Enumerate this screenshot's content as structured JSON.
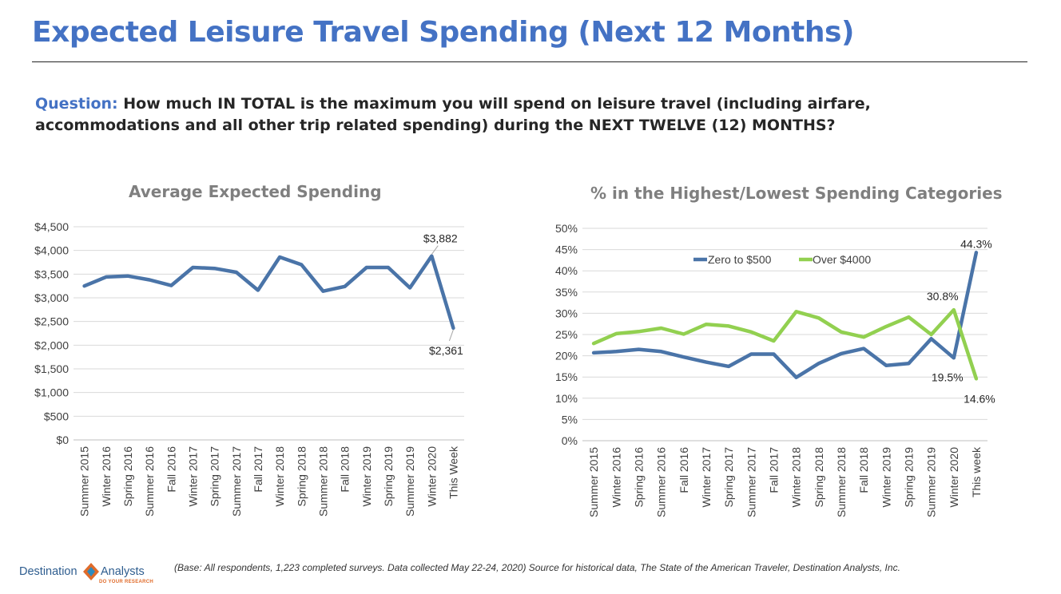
{
  "header": {
    "title": "Expected Leisure Travel Spending (Next 12 Months)",
    "question_label": "Question:",
    "question_text": "How much IN TOTAL is the maximum you will spend on leisure travel (including airfare, accommodations and all other trip related spending) during the NEXT TWELVE (12) MONTHS?"
  },
  "footer": {
    "note": "(Base: All respondents, 1,223 completed surveys. Data collected May 22-24, 2020) Source for historical data, The State of the American Traveler, Destination Analysts, Inc.",
    "logo_left": "Destination",
    "logo_right": "Analysts",
    "logo_tagline": "DO YOUR RESEARCH"
  },
  "colors": {
    "title_blue": "#4472c4",
    "series_blue": "#4a74a8",
    "series_green": "#92d050",
    "gridline": "#d9d9d9",
    "chart_title_gray": "#7f7f7f"
  },
  "chart_data": [
    {
      "type": "line",
      "title": "Average Expected Spending",
      "categories": [
        "Summer 2015",
        "Winter 2016",
        "Spring 2016",
        "Summer 2016",
        "Fall 2016",
        "Winter 2017",
        "Spring 2017",
        "Summer 2017",
        "Fall 2017",
        "Winter 2018",
        "Spring 2018",
        "Summer 2018",
        "Fall 2018",
        "Winter 2019",
        "Spring 2019",
        "Summer 2019",
        "Winter 2020",
        "This Week"
      ],
      "series": [
        {
          "values": [
            3250,
            3440,
            3460,
            3380,
            3260,
            3640,
            3620,
            3540,
            3160,
            3860,
            3700,
            3140,
            3240,
            3640,
            3640,
            3210,
            3882,
            2361
          ]
        }
      ],
      "ylim": [
        0,
        4500
      ],
      "yticks": [
        "$0",
        "$500",
        "$1,000",
        "$1,500",
        "$2,000",
        "$2,500",
        "$3,000",
        "$3,500",
        "$4,000",
        "$4,500"
      ],
      "grid": true,
      "annotations": [
        {
          "category": "Winter 2020",
          "label": "$3,882"
        },
        {
          "category": "This Week",
          "label": "$2,361"
        }
      ]
    },
    {
      "type": "line",
      "title": "% in the Highest/Lowest Spending Categories",
      "categories": [
        "Summer 2015",
        "Winter 2016",
        "Spring 2016",
        "Summer 2016",
        "Fall 2016",
        "Winter 2017",
        "Spring 2017",
        "Summer 2017",
        "Fall 2017",
        "Winter 2018",
        "Spring 2018",
        "Summer 2018",
        "Fall 2018",
        "Winter 2019",
        "Spring 2019",
        "Summer 2019",
        "Winter 2020",
        "This week"
      ],
      "series": [
        {
          "name": "Zero to $500",
          "values": [
            20.7,
            21.0,
            21.5,
            21.0,
            19.7,
            18.5,
            17.5,
            20.4,
            20.4,
            14.9,
            18.2,
            20.5,
            21.7,
            17.7,
            18.2,
            24.0,
            19.5,
            44.3
          ]
        },
        {
          "name": "Over $4000",
          "values": [
            22.9,
            25.2,
            25.7,
            26.5,
            25.1,
            27.4,
            27.0,
            25.6,
            23.5,
            30.4,
            28.9,
            25.6,
            24.4,
            26.9,
            29.1,
            25.0,
            30.8,
            14.6
          ]
        }
      ],
      "ylim": [
        0,
        50
      ],
      "yticks": [
        "0%",
        "5%",
        "10%",
        "15%",
        "20%",
        "25%",
        "30%",
        "35%",
        "40%",
        "45%",
        "50%"
      ],
      "grid": true,
      "legend": "top",
      "annotations": [
        {
          "series": "Zero to $500",
          "category": "This week",
          "label": "44.3%"
        },
        {
          "series": "Over $4000",
          "category": "Winter 2020",
          "label": "30.8%"
        },
        {
          "series": "Zero to $500",
          "category": "Winter 2020",
          "label": "19.5%"
        },
        {
          "series": "Over $4000",
          "category": "This week",
          "label": "14.6%"
        }
      ]
    }
  ]
}
